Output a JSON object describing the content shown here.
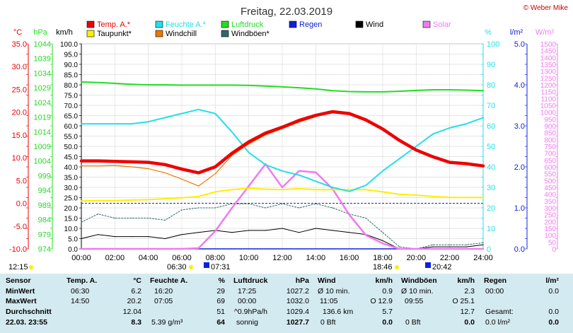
{
  "title": "Freitag, 22.03.2019",
  "credit": "© Weber Mike",
  "legend": [
    {
      "label": "Temp. A.*",
      "color": "#ee0000"
    },
    {
      "label": "Feuchte A.*",
      "color": "#22e0e8"
    },
    {
      "label": "Luftdruck",
      "color": "#22dd22"
    },
    {
      "label": "Regen",
      "color": "#1020dd"
    },
    {
      "label": "Wind",
      "color": "#000000"
    },
    {
      "label": "Solar",
      "color": "#f07af0"
    },
    {
      "label": "Taupunkt*",
      "color": "#ffee00"
    },
    {
      "label": "Windchill",
      "color": "#ee7700"
    },
    {
      "label": "Windböen*",
      "color": "#2f6868"
    }
  ],
  "axis_units": {
    "temp": "°C",
    "pressure": "hPa",
    "wind": "km/h",
    "humidity": "%",
    "rain": "l/m²",
    "solar": "W/m²"
  },
  "axis_ticks": {
    "temp": [
      "35.0",
      "30.0",
      "25.0",
      "20.0",
      "15.0",
      "10.0",
      "5.0",
      "0.0",
      "-5.0",
      "-10.0"
    ],
    "pressure": [
      "1044",
      "1039",
      "1034",
      "1029",
      "1024",
      "1019",
      "1014",
      "1009",
      "1004",
      "999",
      "994",
      "989",
      "984",
      "979",
      "974"
    ],
    "wind": [
      "100.0",
      "95.0",
      "90.0",
      "85.0",
      "80.0",
      "75.0",
      "70.0",
      "65.0",
      "60.0",
      "55.0",
      "50.0",
      "45.0",
      "40.0",
      "35.0",
      "30.0",
      "25.0",
      "20.0",
      "15.0",
      "10.0",
      "5.0",
      "0.0"
    ],
    "humidity": [
      "100",
      "90",
      "80",
      "70",
      "60",
      "50",
      "40",
      "30",
      "20",
      "10",
      "0"
    ],
    "rain": [
      "5.0",
      "4.0",
      "3.0",
      "2.0",
      "1.0",
      "0.0"
    ],
    "solar": [
      "1500",
      "1450",
      "1400",
      "1350",
      "1300",
      "1250",
      "1200",
      "1150",
      "1100",
      "1050",
      "1000",
      "950",
      "900",
      "850",
      "800",
      "750",
      "700",
      "650",
      "600",
      "550",
      "500",
      "450",
      "400",
      "350",
      "300",
      "250",
      "200",
      "150",
      "100",
      "50",
      "0"
    ],
    "time": [
      "00:00",
      "02:00",
      "04:00",
      "06:00",
      "08:00",
      "10:00",
      "12:00",
      "14:00",
      "16:00",
      "18:00",
      "20:00",
      "22:00",
      "24:00"
    ]
  },
  "sun_events": {
    "time_left": "12:15",
    "sunrise_civil": "06:30",
    "sunrise": "07:31",
    "sunset": "18:46",
    "sunset_civil": "20:42"
  },
  "chart_data": {
    "type": "line",
    "title": "Freitag, 22.03.2019",
    "xlabel": "",
    "x": [
      0,
      1,
      2,
      3,
      4,
      5,
      6,
      7,
      8,
      9,
      10,
      11,
      12,
      13,
      14,
      15,
      16,
      17,
      18,
      19,
      20,
      21,
      22,
      23,
      24
    ],
    "xlim": [
      0,
      24
    ],
    "grid": true,
    "legend_position": "top",
    "axes": {
      "left_temp": {
        "unit": "°C",
        "range": [
          -10,
          35
        ]
      },
      "left_pressure": {
        "unit": "hPa",
        "range": [
          974,
          1044
        ]
      },
      "left_wind": {
        "unit": "km/h",
        "range": [
          0,
          100
        ]
      },
      "right_humidity": {
        "unit": "%",
        "range": [
          0,
          100
        ]
      },
      "right_rain": {
        "unit": "l/m²",
        "range": [
          0,
          5
        ]
      },
      "right_solar": {
        "unit": "W/m²",
        "range": [
          0,
          1500
        ]
      }
    },
    "series": [
      {
        "name": "Temp. A.*",
        "axis": "temp",
        "color": "#ee0000",
        "values": [
          9.3,
          9.3,
          9.2,
          9.1,
          9.0,
          8.5,
          7.5,
          6.7,
          8.0,
          11.0,
          13.5,
          15.4,
          16.7,
          18.2,
          19.3,
          20.1,
          19.7,
          18.3,
          16.3,
          13.8,
          11.7,
          10.2,
          9.0,
          8.7,
          8.2
        ]
      },
      {
        "name": "Windchill",
        "axis": "temp",
        "color": "#ee7700",
        "values": [
          8.2,
          8.2,
          8.3,
          8.0,
          7.6,
          6.7,
          5.3,
          3.8,
          6.5,
          10.5,
          13.0,
          15.0,
          16.4,
          17.8,
          19.0,
          20.0,
          19.6,
          18.3,
          16.3,
          13.8,
          11.7,
          10.2,
          9.0,
          8.7,
          8.2
        ]
      },
      {
        "name": "Taupunkt*",
        "axis": "temp",
        "color": "#ffee00",
        "values": [
          0.5,
          0.6,
          0.6,
          0.7,
          0.8,
          1.0,
          1.2,
          1.5,
          2.5,
          3.0,
          3.3,
          3.1,
          3.0,
          3.2,
          3.0,
          3.0,
          3.0,
          3.0,
          2.5,
          2.0,
          1.8,
          1.5,
          1.3,
          1.3,
          1.3
        ]
      },
      {
        "name": "Luftdruck",
        "axis": "pressure",
        "color": "#22dd22",
        "values": [
          1031.0,
          1030.8,
          1030.5,
          1030.2,
          1030.0,
          1030.0,
          1029.9,
          1029.9,
          1029.9,
          1029.9,
          1029.8,
          1029.6,
          1029.3,
          1029.0,
          1028.6,
          1028.0,
          1027.7,
          1027.6,
          1027.6,
          1027.8,
          1028.1,
          1028.3,
          1028.3,
          1028.2,
          1028.0
        ]
      },
      {
        "name": "Feuchte A.*",
        "axis": "humidity",
        "color": "#22e0e8",
        "values": [
          61,
          61,
          61,
          61,
          62,
          64,
          66,
          68,
          66,
          57,
          47,
          41,
          38,
          36,
          33,
          30,
          28,
          31,
          38,
          44,
          50,
          56,
          59,
          61,
          64
        ]
      },
      {
        "name": "Wind",
        "axis": "wind",
        "color": "#000000",
        "values": [
          5,
          7,
          6,
          6,
          6,
          5,
          7,
          8,
          9,
          8,
          9,
          9,
          10,
          8,
          10,
          9,
          8,
          7,
          4,
          0,
          0,
          1,
          1,
          1,
          2
        ]
      },
      {
        "name": "Windböen*",
        "axis": "wind",
        "color": "#2f6868",
        "values": [
          13,
          17,
          15,
          15,
          15,
          14,
          19,
          20,
          20,
          22,
          22,
          20,
          22,
          20,
          22,
          20,
          17,
          15,
          8,
          1,
          0,
          2,
          2,
          2,
          3
        ]
      },
      {
        "name": "Solar",
        "axis": "solar",
        "color": "#f07af0",
        "values": [
          0,
          0,
          0,
          0,
          0,
          0,
          0,
          5,
          130,
          300,
          460,
          620,
          450,
          570,
          560,
          440,
          250,
          100,
          40,
          0,
          0,
          0,
          0,
          0,
          0
        ]
      },
      {
        "name": "Regen",
        "axis": "rain",
        "color": "#1020dd",
        "values": [
          0,
          0,
          0,
          0,
          0,
          0,
          0,
          0,
          0,
          0,
          0,
          0,
          0,
          0,
          0,
          0,
          0,
          0,
          0,
          0,
          0,
          0,
          0,
          0,
          0
        ]
      }
    ]
  },
  "stats": {
    "temp": {
      "header": "Temp. A.",
      "unit": "°C",
      "min_time": "06:30",
      "min": "6.2",
      "max_time": "14:50",
      "max": "20.2",
      "avg": "12.04",
      "current": "8.3"
    },
    "humidity": {
      "header": "Feuchte A.",
      "unit": "%",
      "min_time": "16:20",
      "min": "29",
      "max_time": "07:05",
      "max": "69",
      "avg": "51",
      "current_abs": "5.39 g/m³",
      "current": "64"
    },
    "pressure": {
      "header": "Luftdruck",
      "unit": "hPa",
      "min_time": "17:25",
      "min": "1027.2",
      "max_time": "00:00",
      "max": "1032.0",
      "trend": "^0.9hPa/h",
      "avg": "1029.4",
      "forecast": "sonnig",
      "current": "1027.7"
    },
    "wind": {
      "header": "Wind",
      "unit": "km/h",
      "min_label": "Ø 10 min.",
      "min": "0.9",
      "max_time": "11:05",
      "max": "O 12.9",
      "avg_label": "136.6 km",
      "avg": "5.7",
      "current_bft": "0 Bft",
      "current": "0.0"
    },
    "gusts": {
      "header": "Windböen",
      "unit": "km/h",
      "min_label": "Ø 10 min.",
      "min": "2.3",
      "max_time": "09:55",
      "max": "O 25.1",
      "avg": "12.7",
      "current_bft": "0 Bft",
      "current": "0.0"
    },
    "rain": {
      "header": "Regen",
      "unit": "l/m²",
      "min_time": "00:00",
      "min": "0.0",
      "total_label": "Gesamt:",
      "total": "0.0",
      "current_rate": "0.0 l/m²",
      "current": "0.0"
    },
    "row_labels": {
      "sensor": "Sensor",
      "min": "MinWert",
      "max": "MaxWert",
      "avg": "Durchschnitt",
      "timestamp": "22.03. 23:55"
    }
  }
}
